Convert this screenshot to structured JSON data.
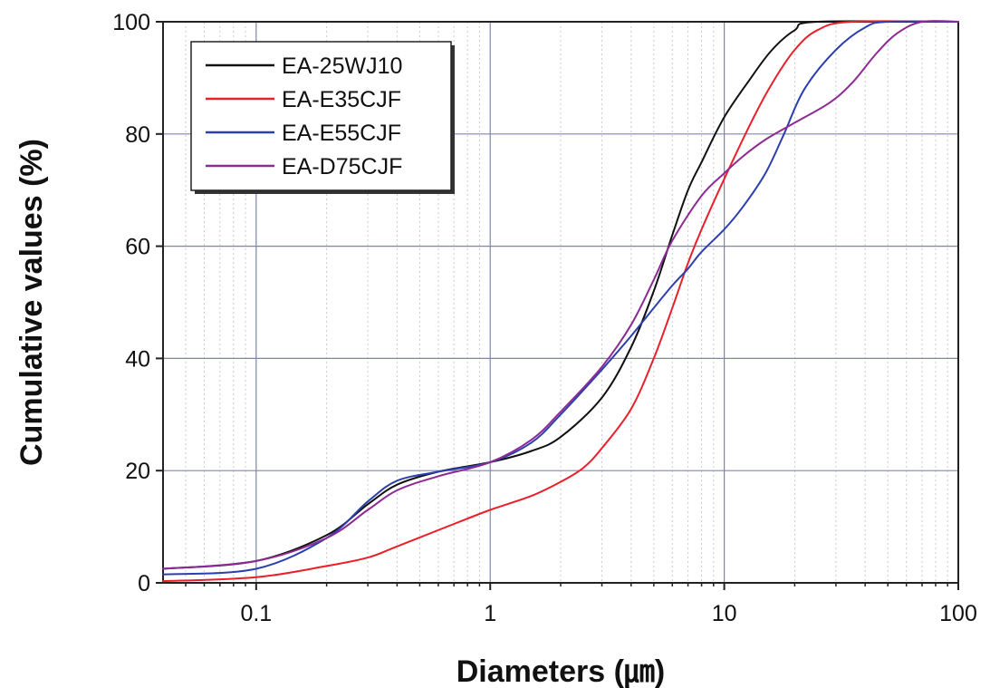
{
  "chart_data": {
    "type": "line",
    "xscale": "log",
    "xlabel": "Diameters (㎛)",
    "ylabel": "Cumulative values (%)",
    "xlim": [
      0.04,
      100
    ],
    "ylim": [
      0,
      100
    ],
    "xticks": [
      {
        "value": 0.1,
        "label": "0.1"
      },
      {
        "value": 1,
        "label": "1"
      },
      {
        "value": 10,
        "label": "10"
      },
      {
        "value": 100,
        "label": "100"
      }
    ],
    "yticks": [
      {
        "value": 0,
        "label": "0"
      },
      {
        "value": 20,
        "label": "20"
      },
      {
        "value": 40,
        "label": "40"
      },
      {
        "value": 60,
        "label": "60"
      },
      {
        "value": 80,
        "label": "80"
      },
      {
        "value": 100,
        "label": "100"
      }
    ],
    "grid": true,
    "legend_position": "top-left",
    "series": [
      {
        "name": "EA-25WJ10",
        "color": "#111111",
        "points": [
          [
            0.04,
            2.5
          ],
          [
            0.1,
            3.9
          ],
          [
            0.2,
            8.5
          ],
          [
            0.3,
            14.0
          ],
          [
            0.4,
            17.5
          ],
          [
            0.6,
            19.8
          ],
          [
            1.0,
            21.5
          ],
          [
            1.5,
            23.5
          ],
          [
            2.0,
            26.0
          ],
          [
            3.0,
            33.0
          ],
          [
            4.0,
            42.0
          ],
          [
            5.0,
            52.0
          ],
          [
            6.0,
            62.0
          ],
          [
            7.0,
            70.0
          ],
          [
            8.0,
            75.0
          ],
          [
            10.0,
            83.0
          ],
          [
            13.0,
            90.0
          ],
          [
            16.0,
            95.0
          ],
          [
            20.0,
            98.5
          ],
          [
            25.0,
            100.0
          ],
          [
            100.0,
            100.0
          ]
        ]
      },
      {
        "name": "EA-E35CJF",
        "color": "#e8202a",
        "points": [
          [
            0.04,
            0.3
          ],
          [
            0.1,
            1.0
          ],
          [
            0.2,
            3.0
          ],
          [
            0.3,
            4.5
          ],
          [
            0.4,
            6.5
          ],
          [
            0.7,
            10.5
          ],
          [
            1.0,
            13.0
          ],
          [
            1.5,
            15.5
          ],
          [
            2.0,
            18.0
          ],
          [
            2.5,
            20.5
          ],
          [
            3.0,
            24.0
          ],
          [
            4.0,
            31.0
          ],
          [
            5.0,
            40.0
          ],
          [
            6.0,
            49.0
          ],
          [
            7.0,
            57.0
          ],
          [
            8.0,
            63.0
          ],
          [
            10.0,
            72.0
          ],
          [
            13.0,
            82.0
          ],
          [
            16.0,
            89.0
          ],
          [
            20.0,
            95.0
          ],
          [
            25.0,
            98.5
          ],
          [
            35.0,
            100.0
          ],
          [
            100.0,
            100.0
          ]
        ]
      },
      {
        "name": "EA-E55CJF",
        "color": "#2b3fae",
        "points": [
          [
            0.04,
            1.5
          ],
          [
            0.1,
            2.5
          ],
          [
            0.2,
            8.0
          ],
          [
            0.3,
            14.5
          ],
          [
            0.4,
            18.2
          ],
          [
            0.6,
            19.8
          ],
          [
            1.0,
            21.5
          ],
          [
            1.5,
            25.0
          ],
          [
            2.0,
            30.0
          ],
          [
            3.0,
            38.0
          ],
          [
            4.0,
            44.0
          ],
          [
            5.0,
            49.0
          ],
          [
            6.0,
            53.0
          ],
          [
            7.0,
            56.0
          ],
          [
            8.0,
            59.0
          ],
          [
            10.0,
            63.0
          ],
          [
            12.0,
            67.0
          ],
          [
            15.0,
            73.0
          ],
          [
            18.0,
            80.0
          ],
          [
            22.0,
            88.0
          ],
          [
            30.0,
            95.0
          ],
          [
            40.0,
            99.0
          ],
          [
            50.0,
            100.0
          ],
          [
            100.0,
            100.0
          ]
        ]
      },
      {
        "name": "EA-D75CJF",
        "color": "#8e2a94",
        "points": [
          [
            0.04,
            2.5
          ],
          [
            0.1,
            3.9
          ],
          [
            0.2,
            8.0
          ],
          [
            0.3,
            13.0
          ],
          [
            0.4,
            16.5
          ],
          [
            0.6,
            19.0
          ],
          [
            1.0,
            21.5
          ],
          [
            1.5,
            25.5
          ],
          [
            2.0,
            30.5
          ],
          [
            3.0,
            38.5
          ],
          [
            4.0,
            46.0
          ],
          [
            5.0,
            54.0
          ],
          [
            6.0,
            61.0
          ],
          [
            8.0,
            69.0
          ],
          [
            10.0,
            73.0
          ],
          [
            12.0,
            76.0
          ],
          [
            15.0,
            79.0
          ],
          [
            20.0,
            82.0
          ],
          [
            28.0,
            85.5
          ],
          [
            35.0,
            89.0
          ],
          [
            45.0,
            94.5
          ],
          [
            55.0,
            98.0
          ],
          [
            70.0,
            100.0
          ],
          [
            100.0,
            100.0
          ]
        ]
      }
    ]
  }
}
